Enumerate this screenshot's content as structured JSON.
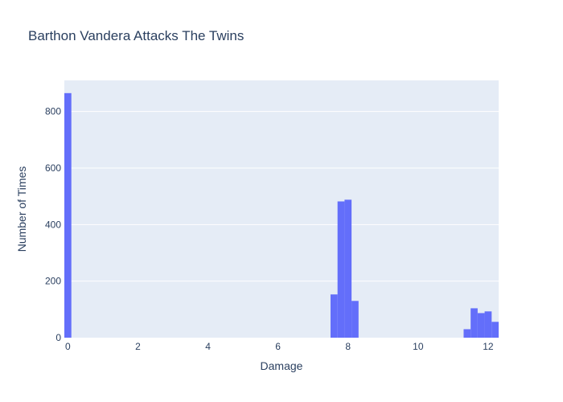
{
  "chart_data": {
    "type": "bar",
    "title": "Barthon Vandera Attacks The Twins",
    "xlabel": "Damage",
    "ylabel": "Number of Times",
    "xlim": [
      -0.1,
      12.3
    ],
    "ylim": [
      0,
      910
    ],
    "xticks": [
      0,
      2,
      4,
      6,
      8,
      10,
      12
    ],
    "yticks": [
      0,
      200,
      400,
      600,
      800
    ],
    "bin_width": 0.2,
    "bins": [
      {
        "x0": -0.1,
        "x1": 0.1,
        "value": 865
      },
      {
        "x0": 7.5,
        "x1": 7.7,
        "value": 153
      },
      {
        "x0": 7.7,
        "x1": 7.9,
        "value": 482
      },
      {
        "x0": 7.9,
        "x1": 8.1,
        "value": 488
      },
      {
        "x0": 8.1,
        "x1": 8.3,
        "value": 130
      },
      {
        "x0": 11.3,
        "x1": 11.5,
        "value": 30
      },
      {
        "x0": 11.5,
        "x1": 11.7,
        "value": 104
      },
      {
        "x0": 11.7,
        "x1": 11.9,
        "value": 87
      },
      {
        "x0": 11.9,
        "x1": 12.1,
        "value": 93
      },
      {
        "x0": 12.1,
        "x1": 12.3,
        "value": 56
      }
    ],
    "grid": true,
    "colors": {
      "bar": "#636efa",
      "plot_bg": "#e5ecf6",
      "grid": "#ffffff",
      "text": "#2a3f5f"
    }
  }
}
